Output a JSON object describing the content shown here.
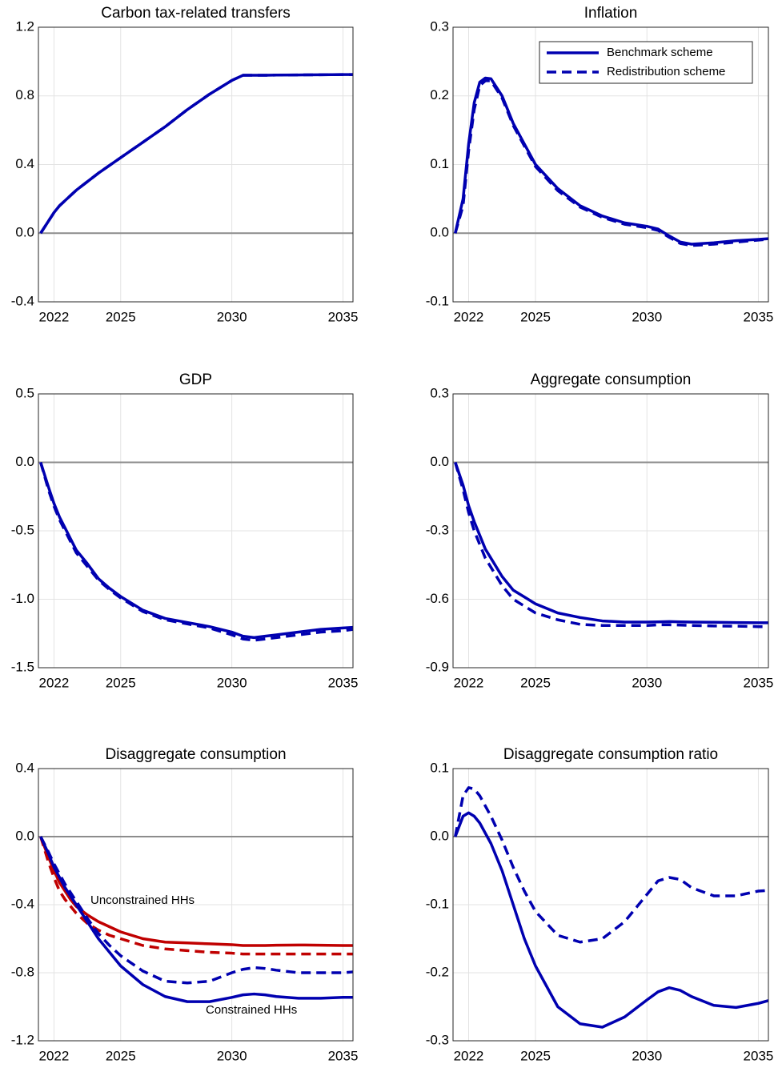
{
  "chart_data": [
    {
      "type": "line",
      "title": "Carbon tax-related transfers",
      "x": [
        2021.4,
        2021.75,
        2022,
        2022.25,
        2022.5,
        2022.75,
        2023,
        2023.5,
        2024,
        2024.5,
        2025,
        2026,
        2027,
        2028,
        2029,
        2030,
        2030.5,
        2031,
        2031.5,
        2032,
        2033,
        2034,
        2035,
        2035.45
      ],
      "xlim": [
        2021.3,
        2035.45
      ],
      "xticks": [
        2022,
        2025,
        2030,
        2035
      ],
      "ylim": [
        -0.4,
        1.2
      ],
      "yticks": [
        -0.4,
        {
          "value": 0,
          "label": "0.0"
        },
        0.4,
        0.8,
        1.2
      ],
      "grid": true,
      "zero_line": true,
      "series": [
        {
          "color": "#0000b0",
          "dash": false,
          "values": [
            0,
            0.07,
            0.12,
            0.16,
            0.19,
            0.22,
            0.25,
            0.3,
            0.35,
            0.395,
            0.44,
            0.53,
            0.62,
            0.72,
            0.81,
            0.89,
            0.92,
            0.92,
            0.92,
            0.921,
            0.922,
            0.923,
            0.924,
            0.924
          ]
        },
        {
          "color": "#0000b0",
          "dash": true,
          "values": [
            0,
            0.07,
            0.12,
            0.16,
            0.19,
            0.22,
            0.25,
            0.3,
            0.35,
            0.395,
            0.44,
            0.53,
            0.62,
            0.72,
            0.81,
            0.89,
            0.92,
            0.92,
            0.92,
            0.921,
            0.922,
            0.923,
            0.924,
            0.924
          ]
        }
      ]
    },
    {
      "type": "line",
      "title": "Inflation",
      "x": [
        2021.4,
        2021.75,
        2022,
        2022.25,
        2022.5,
        2022.75,
        2023,
        2023.5,
        2024,
        2024.5,
        2025,
        2026,
        2027,
        2028,
        2029,
        2030,
        2030.5,
        2031,
        2031.5,
        2032,
        2033,
        2034,
        2035,
        2035.45
      ],
      "xlim": [
        2021.3,
        2035.45
      ],
      "xticks": [
        2022,
        2025,
        2030,
        2035
      ],
      "ylim": [
        -0.1,
        0.3
      ],
      "yticks": [
        -0.1,
        {
          "value": 0,
          "label": "0.0"
        },
        0.1,
        0.2,
        0.3
      ],
      "grid": true,
      "zero_line": true,
      "legend": "upper right",
      "series": [
        {
          "name": "Benchmark scheme",
          "color": "#0000b0",
          "dash": false,
          "values": [
            0,
            0.05,
            0.13,
            0.19,
            0.22,
            0.226,
            0.225,
            0.2,
            0.16,
            0.13,
            0.1,
            0.065,
            0.04,
            0.025,
            0.015,
            0.01,
            0.006,
            -0.004,
            -0.013,
            -0.016,
            -0.014,
            -0.011,
            -0.009,
            -0.008
          ]
        },
        {
          "name": "Redistribution scheme",
          "color": "#0000b0",
          "dash": true,
          "values": [
            0,
            0.04,
            0.12,
            0.18,
            0.215,
            0.222,
            0.222,
            0.197,
            0.157,
            0.127,
            0.097,
            0.062,
            0.038,
            0.023,
            0.013,
            0.008,
            0.004,
            -0.006,
            -0.015,
            -0.018,
            -0.016,
            -0.013,
            -0.01,
            -0.009
          ]
        }
      ]
    },
    {
      "type": "line",
      "title": "GDP",
      "x": [
        2021.4,
        2021.75,
        2022,
        2022.25,
        2022.5,
        2022.75,
        2023,
        2023.5,
        2024,
        2024.5,
        2025,
        2026,
        2027,
        2028,
        2029,
        2030,
        2030.5,
        2031,
        2031.5,
        2032,
        2033,
        2034,
        2035,
        2035.45
      ],
      "xlim": [
        2021.3,
        2035.45
      ],
      "xticks": [
        2022,
        2025,
        2030,
        2035
      ],
      "ylim": [
        -1.5,
        0.5
      ],
      "yticks": [
        -1.5,
        {
          "value": -1,
          "label": "-1.0"
        },
        -0.5,
        {
          "value": 0,
          "label": "0.0"
        },
        0.5
      ],
      "grid": true,
      "zero_line": true,
      "series": [
        {
          "color": "#0000b0",
          "dash": false,
          "values": [
            0,
            -0.18,
            -0.3,
            -0.4,
            -0.48,
            -0.56,
            -0.64,
            -0.74,
            -0.85,
            -0.92,
            -0.98,
            -1.08,
            -1.14,
            -1.17,
            -1.2,
            -1.24,
            -1.27,
            -1.28,
            -1.27,
            -1.26,
            -1.24,
            -1.22,
            -1.21,
            -1.205
          ]
        },
        {
          "color": "#0000b0",
          "dash": true,
          "values": [
            0,
            -0.2,
            -0.32,
            -0.42,
            -0.5,
            -0.58,
            -0.66,
            -0.76,
            -0.86,
            -0.93,
            -0.99,
            -1.09,
            -1.15,
            -1.18,
            -1.21,
            -1.26,
            -1.29,
            -1.3,
            -1.29,
            -1.28,
            -1.26,
            -1.24,
            -1.23,
            -1.22
          ]
        }
      ]
    },
    {
      "type": "line",
      "title": "Aggregate consumption",
      "x": [
        2021.4,
        2021.75,
        2022,
        2022.25,
        2022.5,
        2022.75,
        2023,
        2023.5,
        2024,
        2024.5,
        2025,
        2026,
        2027,
        2028,
        2029,
        2030,
        2030.5,
        2031,
        2031.5,
        2032,
        2033,
        2034,
        2035,
        2035.45
      ],
      "xlim": [
        2021.3,
        2035.45
      ],
      "xticks": [
        2022,
        2025,
        2030,
        2035
      ],
      "ylim": [
        -0.9,
        0.3
      ],
      "yticks": [
        -0.9,
        -0.6,
        -0.3,
        {
          "value": 0,
          "label": "0.0"
        },
        0.3
      ],
      "grid": true,
      "zero_line": true,
      "series": [
        {
          "color": "#0000b0",
          "dash": false,
          "values": [
            0,
            -0.1,
            -0.19,
            -0.26,
            -0.32,
            -0.38,
            -0.42,
            -0.5,
            -0.56,
            -0.59,
            -0.62,
            -0.66,
            -0.68,
            -0.695,
            -0.7,
            -0.7,
            -0.699,
            -0.698,
            -0.699,
            -0.7,
            -0.701,
            -0.702,
            -0.703,
            -0.703
          ]
        },
        {
          "color": "#0000b0",
          "dash": true,
          "values": [
            0,
            -0.12,
            -0.22,
            -0.3,
            -0.36,
            -0.42,
            -0.46,
            -0.54,
            -0.6,
            -0.63,
            -0.66,
            -0.69,
            -0.71,
            -0.715,
            -0.715,
            -0.715,
            -0.712,
            -0.712,
            -0.713,
            -0.715,
            -0.717,
            -0.718,
            -0.72,
            -0.72
          ]
        }
      ]
    },
    {
      "type": "line",
      "title": "Disaggregate consumption",
      "x": [
        2021.4,
        2021.75,
        2022,
        2022.25,
        2022.5,
        2022.75,
        2023,
        2023.5,
        2024,
        2024.5,
        2025,
        2026,
        2027,
        2028,
        2029,
        2030,
        2030.5,
        2031,
        2031.5,
        2032,
        2033,
        2034,
        2035,
        2035.45
      ],
      "xlim": [
        2021.3,
        2035.45
      ],
      "xticks": [
        2022,
        2025,
        2030,
        2035
      ],
      "ylim": [
        -1.2,
        0.4
      ],
      "yticks": [
        -1.2,
        -0.8,
        -0.4,
        {
          "value": 0,
          "label": "0.0"
        },
        0.4
      ],
      "grid": true,
      "zero_line": true,
      "annotations": [
        {
          "text": "Unconstrained HHs",
          "color": "#c00000"
        },
        {
          "text": "Constrained HHs",
          "color": "#0000b0"
        }
      ],
      "series": [
        {
          "color": "#c00000",
          "dash": false,
          "values": [
            0,
            -0.12,
            -0.2,
            -0.27,
            -0.32,
            -0.37,
            -0.41,
            -0.46,
            -0.5,
            -0.53,
            -0.56,
            -0.6,
            -0.62,
            -0.625,
            -0.63,
            -0.635,
            -0.64,
            -0.64,
            -0.64,
            -0.638,
            -0.637,
            -0.638,
            -0.64,
            -0.64
          ]
        },
        {
          "color": "#c00000",
          "dash": true,
          "values": [
            0,
            -0.15,
            -0.24,
            -0.32,
            -0.37,
            -0.41,
            -0.45,
            -0.51,
            -0.55,
            -0.58,
            -0.6,
            -0.64,
            -0.66,
            -0.67,
            -0.68,
            -0.685,
            -0.69,
            -0.69,
            -0.69,
            -0.69,
            -0.69,
            -0.69,
            -0.69,
            -0.69
          ]
        },
        {
          "color": "#0000b0",
          "dash": false,
          "values": [
            0,
            -0.1,
            -0.18,
            -0.24,
            -0.3,
            -0.35,
            -0.4,
            -0.5,
            -0.6,
            -0.68,
            -0.76,
            -0.87,
            -0.94,
            -0.97,
            -0.97,
            -0.945,
            -0.93,
            -0.925,
            -0.93,
            -0.94,
            -0.95,
            -0.95,
            -0.945,
            -0.945
          ]
        },
        {
          "color": "#0000b0",
          "dash": true,
          "values": [
            0,
            -0.09,
            -0.16,
            -0.22,
            -0.28,
            -0.33,
            -0.38,
            -0.48,
            -0.57,
            -0.64,
            -0.7,
            -0.79,
            -0.85,
            -0.86,
            -0.85,
            -0.8,
            -0.78,
            -0.77,
            -0.775,
            -0.785,
            -0.8,
            -0.8,
            -0.8,
            -0.795
          ]
        }
      ]
    },
    {
      "type": "line",
      "title": "Disaggregate consumption ratio",
      "x": [
        2021.4,
        2021.75,
        2022,
        2022.25,
        2022.5,
        2022.75,
        2023,
        2023.5,
        2024,
        2024.5,
        2025,
        2026,
        2027,
        2028,
        2029,
        2030,
        2030.5,
        2031,
        2031.5,
        2032,
        2033,
        2034,
        2035,
        2035.45
      ],
      "xlim": [
        2021.3,
        2035.45
      ],
      "xticks": [
        2022,
        2025,
        2030,
        2035
      ],
      "ylim": [
        -0.3,
        0.1
      ],
      "yticks": [
        -0.3,
        -0.2,
        -0.1,
        {
          "value": 0,
          "label": "0.0"
        },
        0.1
      ],
      "grid": true,
      "zero_line": true,
      "series": [
        {
          "color": "#0000b0",
          "dash": false,
          "values": [
            0,
            0.03,
            0.035,
            0.03,
            0.02,
            0.005,
            -0.01,
            -0.05,
            -0.1,
            -0.15,
            -0.19,
            -0.25,
            -0.275,
            -0.28,
            -0.265,
            -0.24,
            -0.228,
            -0.222,
            -0.226,
            -0.235,
            -0.248,
            -0.251,
            -0.245,
            -0.241
          ]
        },
        {
          "color": "#0000b0",
          "dash": true,
          "values": [
            0,
            0.06,
            0.072,
            0.07,
            0.06,
            0.045,
            0.03,
            -0.005,
            -0.045,
            -0.08,
            -0.11,
            -0.145,
            -0.155,
            -0.15,
            -0.125,
            -0.085,
            -0.065,
            -0.06,
            -0.063,
            -0.075,
            -0.087,
            -0.087,
            -0.08,
            -0.079
          ]
        }
      ]
    }
  ]
}
